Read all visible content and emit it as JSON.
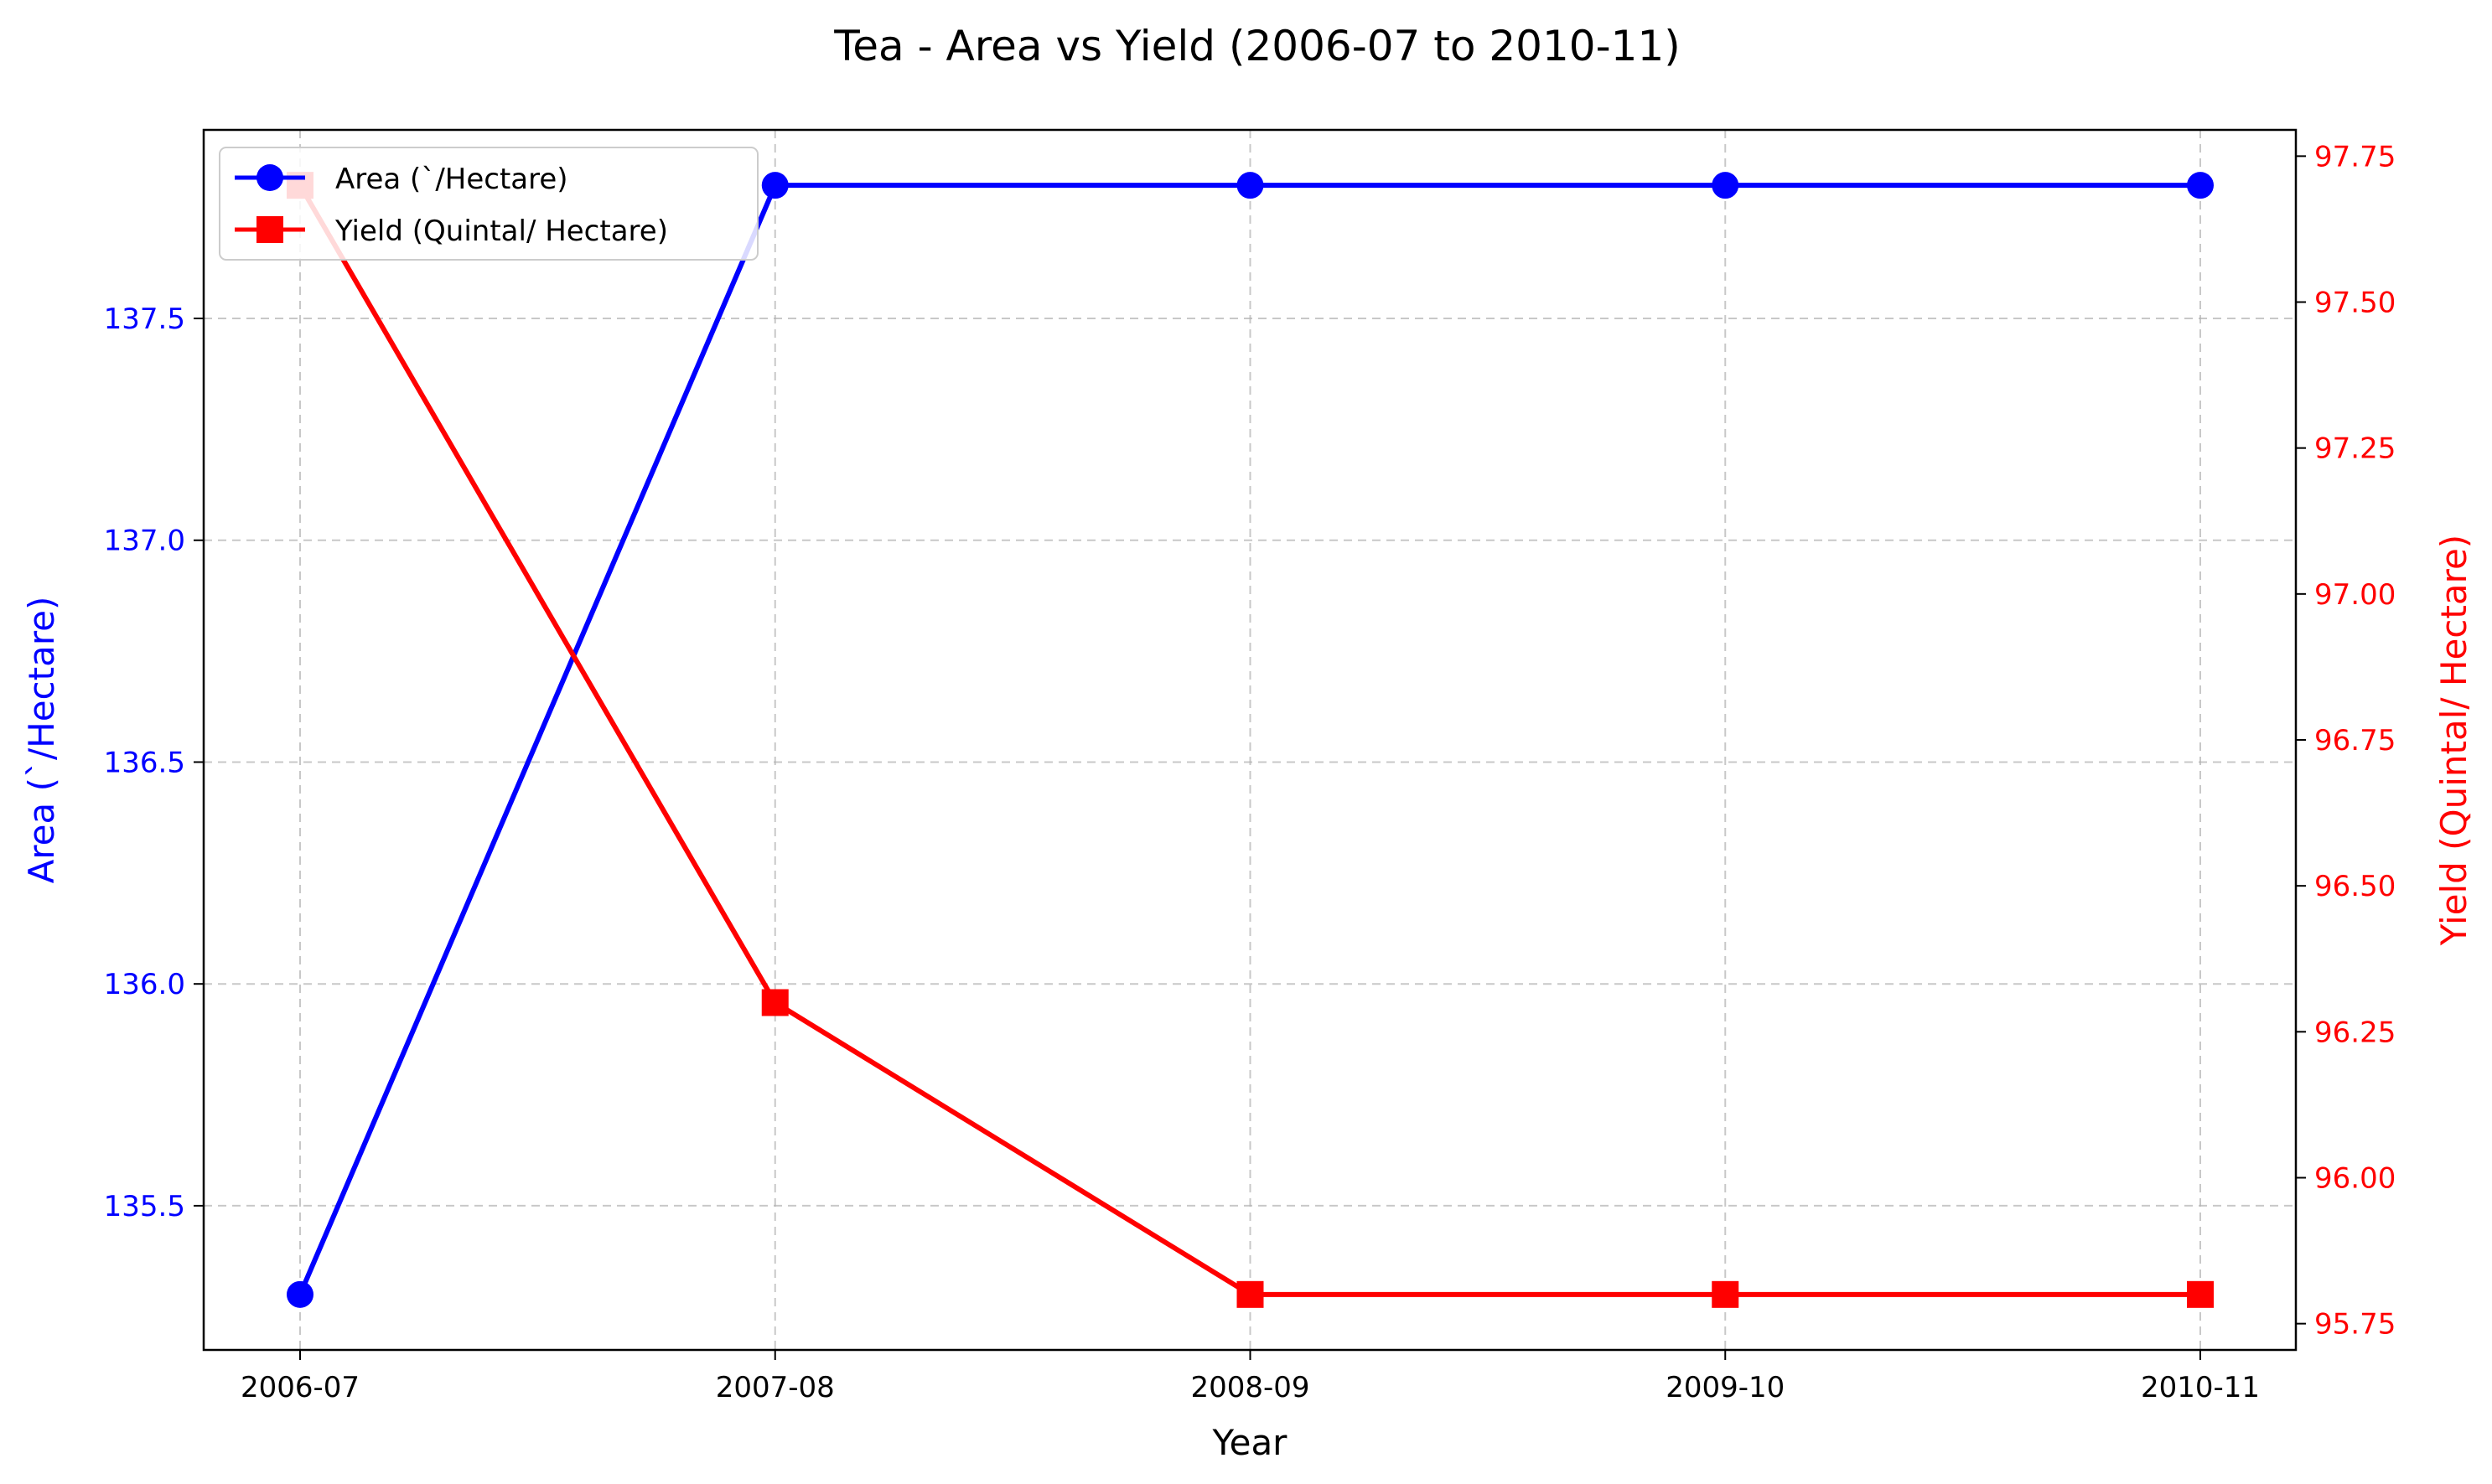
{
  "chart_data": {
    "type": "line",
    "title": "Tea  - Area vs Yield (2006-07 to 2010-11)",
    "xlabel": "Year",
    "categories": [
      "2006-07",
      "2007-08",
      "2008-09",
      "2009-10",
      "2010-11"
    ],
    "grid": true,
    "legend_position": "upper-left",
    "series": [
      {
        "name": "Area (`/Hectare)",
        "axis": "left",
        "color": "#0000ff",
        "marker": "circle",
        "values": [
          135.3,
          137.8,
          137.8,
          137.8,
          137.8
        ]
      },
      {
        "name": "Yield (Quintal/ Hectare)",
        "axis": "right",
        "color": "#ff0000",
        "marker": "square",
        "values": [
          97.7,
          96.3,
          95.8,
          95.8,
          95.8
        ]
      }
    ],
    "y_left": {
      "label": "Area (`/Hectare)",
      "color": "#0000ff",
      "ylim": [
        135.175,
        137.925
      ],
      "ticks": [
        135.5,
        136.0,
        136.5,
        137.0,
        137.5
      ],
      "tick_labels": [
        "135.5",
        "136.0",
        "136.5",
        "137.0",
        "137.5"
      ]
    },
    "y_right": {
      "label": "Yield (Quintal/ Hectare)",
      "color": "#ff0000",
      "ylim": [
        95.705,
        97.795
      ],
      "ticks": [
        95.75,
        96.0,
        96.25,
        96.5,
        96.75,
        97.0,
        97.25,
        97.5,
        97.75
      ],
      "tick_labels": [
        "95.75",
        "96.00",
        "96.25",
        "96.50",
        "96.75",
        "97.00",
        "97.25",
        "97.50",
        "97.75"
      ]
    }
  }
}
